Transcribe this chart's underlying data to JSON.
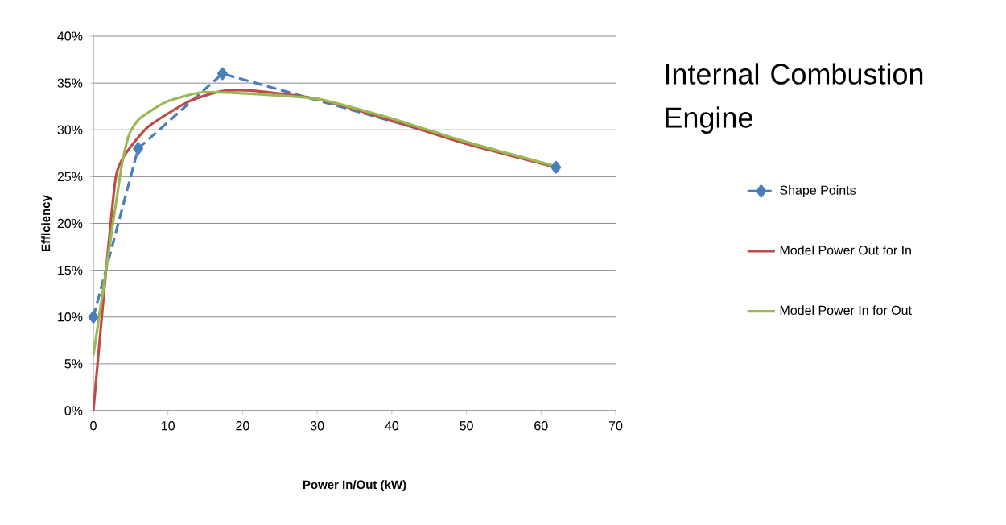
{
  "chart_data": {
    "type": "line",
    "title": "Internal Combustion Engine",
    "xlabel": "Power In/Out (kW)",
    "ylabel": "Efficiency",
    "xlim": [
      0,
      70
    ],
    "xticks": [
      0,
      10,
      20,
      30,
      40,
      50,
      60,
      70
    ],
    "ylim": [
      0,
      40
    ],
    "yticks": [
      {
        "value": 0,
        "label": "0%"
      },
      {
        "value": 5,
        "label": "5%"
      },
      {
        "value": 10,
        "label": "10%"
      },
      {
        "value": 15,
        "label": "15%"
      },
      {
        "value": 20,
        "label": "20%"
      },
      {
        "value": 25,
        "label": "25%"
      },
      {
        "value": 30,
        "label": "30%"
      },
      {
        "value": 35,
        "label": "35%"
      },
      {
        "value": 40,
        "label": "40%"
      }
    ],
    "grid": "y",
    "legend": "right",
    "series": [
      {
        "name": "Shape Points",
        "color": "#4a7ebb",
        "marker": "diamond",
        "line_style": "dashed",
        "x": [
          0,
          6,
          17.3,
          62
        ],
        "values": [
          10,
          28,
          36,
          26
        ]
      },
      {
        "name": "Model Power Out for In",
        "color": "#be4b48",
        "marker": "none",
        "line_style": "solid",
        "x": [
          0,
          1.7,
          3.0,
          4.2,
          7.3,
          12.7,
          17,
          21,
          30,
          40,
          50,
          62
        ],
        "values": [
          0,
          15,
          24.9,
          27.3,
          30.3,
          33.0,
          34.1,
          34.2,
          33.3,
          31,
          28.5,
          26
        ]
      },
      {
        "name": "Model Power In for Out",
        "color": "#98b954",
        "marker": "none",
        "line_style": "solid",
        "x": [
          0,
          1.7,
          3.7,
          4.8,
          6.2,
          9.8,
          14.5,
          20,
          30,
          40,
          50,
          62
        ],
        "values": [
          5.9,
          15,
          25.7,
          29.5,
          31.2,
          33.0,
          34.0,
          33.9,
          33.3,
          31.2,
          28.7,
          26.1
        ]
      }
    ]
  }
}
